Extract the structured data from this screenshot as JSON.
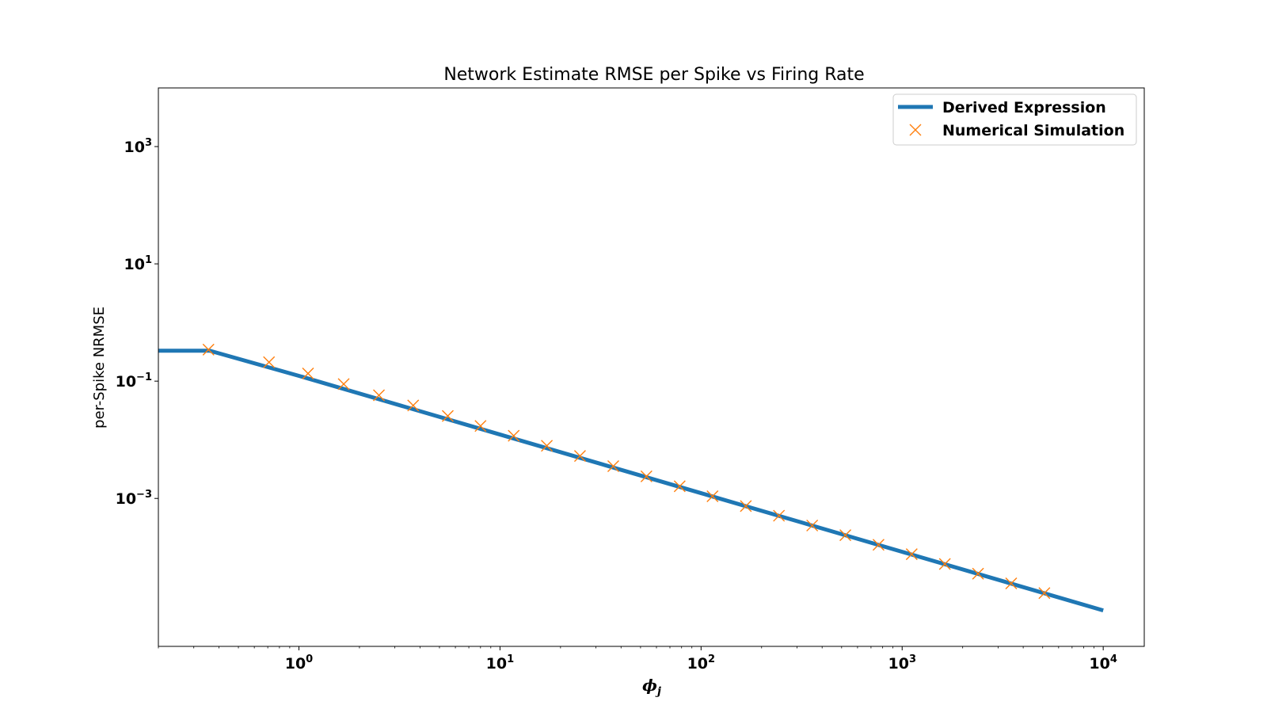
{
  "chart_data": {
    "type": "line",
    "title": "Network Estimate RMSE per Spike vs Firing Rate",
    "xlabel_base": "ϕ",
    "xlabel_sub": "j",
    "ylabel": "per-Spike NRMSE",
    "xscale": "log",
    "yscale": "log",
    "xlim": [
      0.2,
      16000
    ],
    "ylim": [
      3e-06,
      10000
    ],
    "grid": false,
    "legend_placement": "top-right",
    "x_ticks": [
      {
        "value": 1,
        "base": "10",
        "exp": "0"
      },
      {
        "value": 10,
        "base": "10",
        "exp": "1"
      },
      {
        "value": 100,
        "base": "10",
        "exp": "2"
      },
      {
        "value": 1000,
        "base": "10",
        "exp": "3"
      },
      {
        "value": 10000,
        "base": "10",
        "exp": "4"
      }
    ],
    "y_ticks": [
      {
        "value": 1000,
        "base": "10",
        "exp": "3"
      },
      {
        "value": 10,
        "base": "10",
        "exp": "1"
      },
      {
        "value": 0.1,
        "base": "10",
        "exp": "−1"
      },
      {
        "value": 0.001,
        "base": "10",
        "exp": "−3"
      }
    ],
    "series": [
      {
        "name": "Derived Expression",
        "kind": "line",
        "color": "#1f77b4",
        "x": [
          0.2,
          0.36,
          1,
          10,
          100,
          1000,
          10000
        ],
        "y": [
          0.33,
          0.33,
          0.123,
          0.0123,
          0.00123,
          0.000123,
          1.23e-05
        ]
      },
      {
        "name": "Numerical Simulation",
        "kind": "marker",
        "color": "#ff7f0e",
        "x": [
          0.355,
          0.71,
          1.11,
          1.67,
          2.5,
          3.7,
          5.5,
          8.0,
          11.7,
          17.1,
          25,
          36.6,
          53.5,
          78.3,
          114,
          167,
          244,
          357,
          522,
          763,
          1116,
          1631,
          2385,
          3487,
          5098
        ],
        "y": [
          0.345,
          0.21,
          0.135,
          0.0892,
          0.0575,
          0.0385,
          0.0255,
          0.0172,
          0.0117,
          0.0079,
          0.0053,
          0.00355,
          0.00238,
          0.00161,
          0.00109,
          0.00074,
          0.000507,
          0.000345,
          0.000236,
          0.000162,
          0.000112,
          7.61e-05,
          5.21e-05,
          3.56e-05,
          2.43e-05
        ]
      }
    ]
  }
}
